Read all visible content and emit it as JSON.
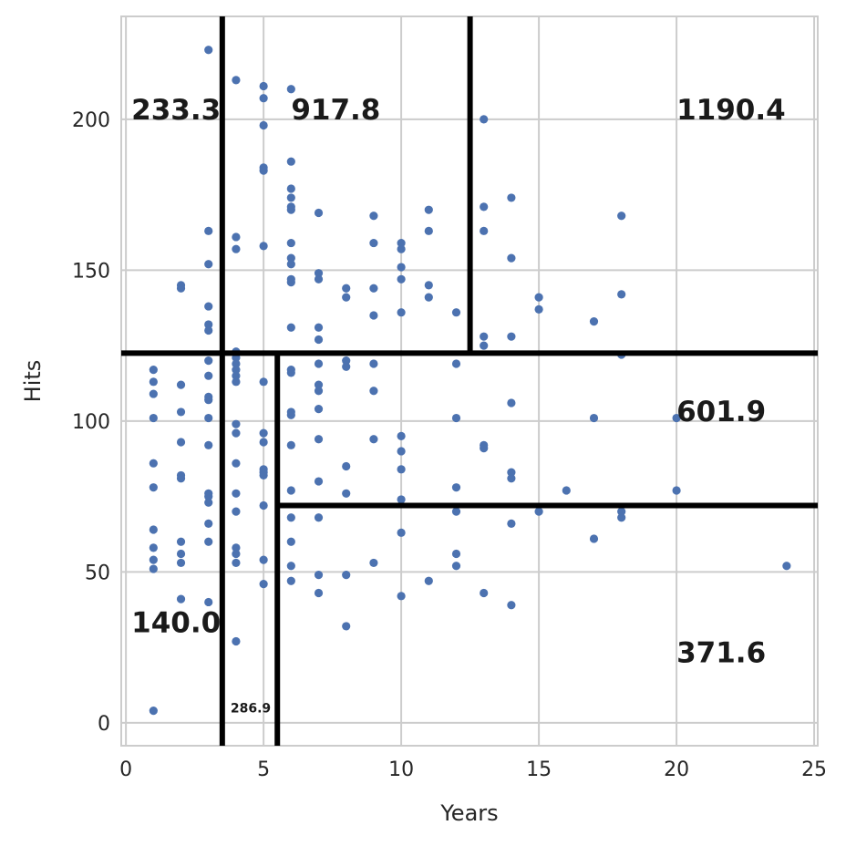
{
  "chart_data": {
    "type": "scatter",
    "xlabel": "Years",
    "ylabel": "Hits",
    "color": "#4c72b0",
    "grid": true,
    "xlim": [
      -0.17,
      25.13
    ],
    "ylim": [
      -7.6,
      234.1
    ],
    "xticks": [
      0,
      5,
      10,
      15,
      20,
      25
    ],
    "yticks": [
      0,
      50,
      100,
      150,
      200
    ],
    "x": [
      1,
      1,
      1,
      1,
      1,
      1,
      1,
      1,
      1,
      1,
      1,
      2,
      2,
      2,
      2,
      2,
      2,
      2,
      2,
      2,
      2,
      2,
      3,
      3,
      3,
      3,
      3,
      3,
      3,
      3,
      3,
      3,
      3,
      3,
      3,
      3,
      3,
      3,
      3,
      3,
      4,
      4,
      4,
      4,
      4,
      4,
      4,
      4,
      4,
      4,
      4,
      4,
      4,
      4,
      4,
      4,
      4,
      4,
      5,
      5,
      5,
      5,
      5,
      5,
      5,
      5,
      5,
      5,
      5,
      5,
      5,
      5,
      5,
      6,
      6,
      6,
      6,
      6,
      6,
      6,
      6,
      6,
      6,
      6,
      6,
      6,
      6,
      6,
      6,
      6,
      6,
      6,
      6,
      6,
      6,
      7,
      7,
      7,
      7,
      7,
      7,
      7,
      7,
      7,
      7,
      7,
      7,
      7,
      7,
      8,
      8,
      8,
      8,
      8,
      8,
      8,
      8,
      9,
      9,
      9,
      9,
      9,
      9,
      9,
      9,
      10,
      10,
      10,
      10,
      10,
      10,
      10,
      10,
      10,
      10,
      10,
      11,
      11,
      11,
      11,
      11,
      12,
      12,
      12,
      12,
      12,
      12,
      12,
      13,
      13,
      13,
      13,
      13,
      13,
      13,
      13,
      14,
      14,
      14,
      14,
      14,
      14,
      14,
      14,
      15,
      15,
      15,
      16,
      17,
      17,
      17,
      18,
      18,
      18,
      18,
      18,
      20,
      20,
      24
    ],
    "values": [
      117,
      113,
      109,
      101,
      86,
      78,
      64,
      58,
      54,
      51,
      4,
      145,
      144,
      112,
      103,
      93,
      82,
      81,
      60,
      56,
      53,
      41,
      223,
      163,
      152,
      138,
      132,
      130,
      120,
      115,
      108,
      107,
      101,
      92,
      76,
      75,
      73,
      66,
      60,
      40,
      213,
      161,
      157,
      123,
      121,
      119,
      117,
      115,
      113,
      99,
      96,
      86,
      76,
      70,
      58,
      56,
      53,
      27,
      211,
      207,
      198,
      184,
      183,
      158,
      113,
      96,
      93,
      84,
      83,
      82,
      72,
      54,
      46,
      210,
      186,
      177,
      174,
      171,
      170,
      159,
      154,
      152,
      147,
      146,
      131,
      117,
      116,
      103,
      102,
      92,
      77,
      68,
      60,
      52,
      47,
      169,
      149,
      147,
      131,
      127,
      119,
      112,
      110,
      104,
      94,
      80,
      68,
      49,
      43,
      144,
      141,
      120,
      118,
      85,
      76,
      49,
      32,
      168,
      159,
      144,
      135,
      119,
      110,
      94,
      53,
      159,
      157,
      151,
      147,
      136,
      95,
      90,
      84,
      74,
      63,
      42,
      170,
      163,
      145,
      141,
      47,
      136,
      119,
      101,
      78,
      70,
      56,
      52,
      200,
      171,
      163,
      128,
      125,
      92,
      91,
      43,
      174,
      154,
      128,
      106,
      83,
      81,
      66,
      39,
      141,
      137,
      70,
      77,
      133,
      101,
      61,
      168,
      142,
      122,
      70,
      68,
      101,
      77,
      52
    ],
    "splits": [
      {
        "x": [
          3.5,
          3.5
        ],
        "y": [
          -7.6,
          234.1
        ]
      },
      {
        "x": [
          -0.17,
          25.13
        ],
        "y": [
          122.5,
          122.5
        ]
      },
      {
        "x": [
          12.5,
          12.5
        ],
        "y": [
          122.5,
          234.1
        ]
      },
      {
        "x": [
          5.5,
          5.5
        ],
        "y": [
          -7.6,
          122.5
        ]
      },
      {
        "x": [
          5.5,
          25.13
        ],
        "y": [
          72,
          72
        ]
      }
    ],
    "annotations": [
      {
        "text": "233.3",
        "x": 0.2,
        "y": 200
      },
      {
        "text": "917.8",
        "x": 6,
        "y": 200
      },
      {
        "text": "1190.4",
        "x": 20,
        "y": 200
      },
      {
        "text": "601.9",
        "x": 20,
        "y": 100
      },
      {
        "text": "140.0",
        "x": 0.2,
        "y": 30
      },
      {
        "text": "371.6",
        "x": 20,
        "y": 20
      },
      {
        "text": "286.9",
        "x": 3.8,
        "y": 3.5
      }
    ]
  }
}
